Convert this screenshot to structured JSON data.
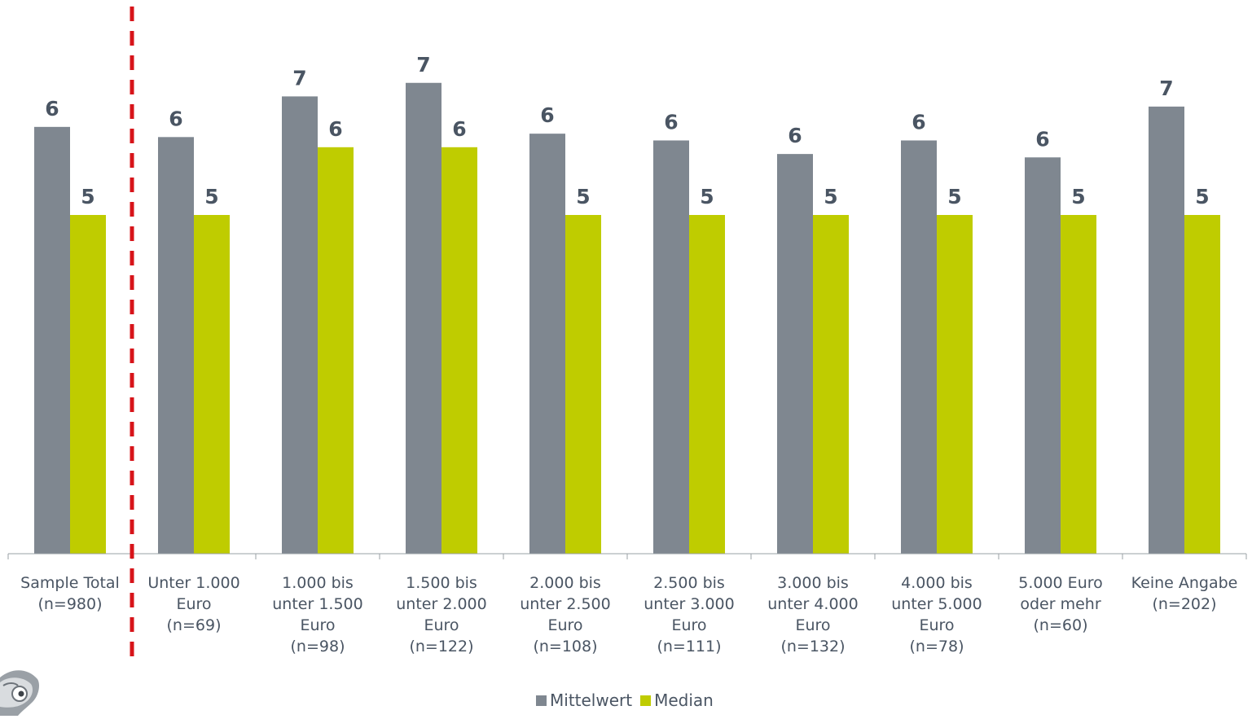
{
  "chart_data": {
    "type": "bar",
    "categories": [
      [
        "Sample Total",
        "(n=980)"
      ],
      [
        "Unter 1.000",
        "Euro",
        "(n=69)"
      ],
      [
        "1.000 bis",
        "unter 1.500",
        "Euro",
        "(n=98)"
      ],
      [
        "1.500 bis",
        "unter 2.000",
        "Euro",
        "(n=122)"
      ],
      [
        "2.000 bis",
        "unter 2.500",
        "Euro",
        "(n=108)"
      ],
      [
        "2.500 bis",
        "unter 3.000",
        "Euro",
        "(n=111)"
      ],
      [
        "3.000 bis",
        "unter 4.000",
        "Euro",
        "(n=132)"
      ],
      [
        "4.000 bis",
        "unter 5.000",
        "Euro",
        "(n=78)"
      ],
      [
        "5.000 Euro",
        "oder mehr",
        "(n=60)"
      ],
      [
        "Keine Angabe",
        "(n=202)"
      ]
    ],
    "series": [
      {
        "name": "Mittelwert",
        "color": "#7f8790",
        "values": [
          6.3,
          6.15,
          6.75,
          6.95,
          6.2,
          6.1,
          5.9,
          6.1,
          5.85,
          6.6
        ],
        "labels": [
          "6",
          "6",
          "7",
          "7",
          "6",
          "6",
          "6",
          "6",
          "6",
          "7"
        ]
      },
      {
        "name": "Median",
        "color": "#bfcc00",
        "values": [
          5,
          5,
          6,
          6,
          5,
          5,
          5,
          5,
          5,
          5
        ],
        "labels": [
          "5",
          "5",
          "6",
          "6",
          "5",
          "5",
          "5",
          "5",
          "5",
          "5"
        ]
      }
    ],
    "ylim": [
      0,
      7.5
    ],
    "xlabel": "",
    "ylabel": "",
    "grid": false,
    "legend_position": "bottom-center",
    "separator_after_category": 0,
    "separator_color": "#d7141a",
    "value_label_color": "#4a5563"
  }
}
